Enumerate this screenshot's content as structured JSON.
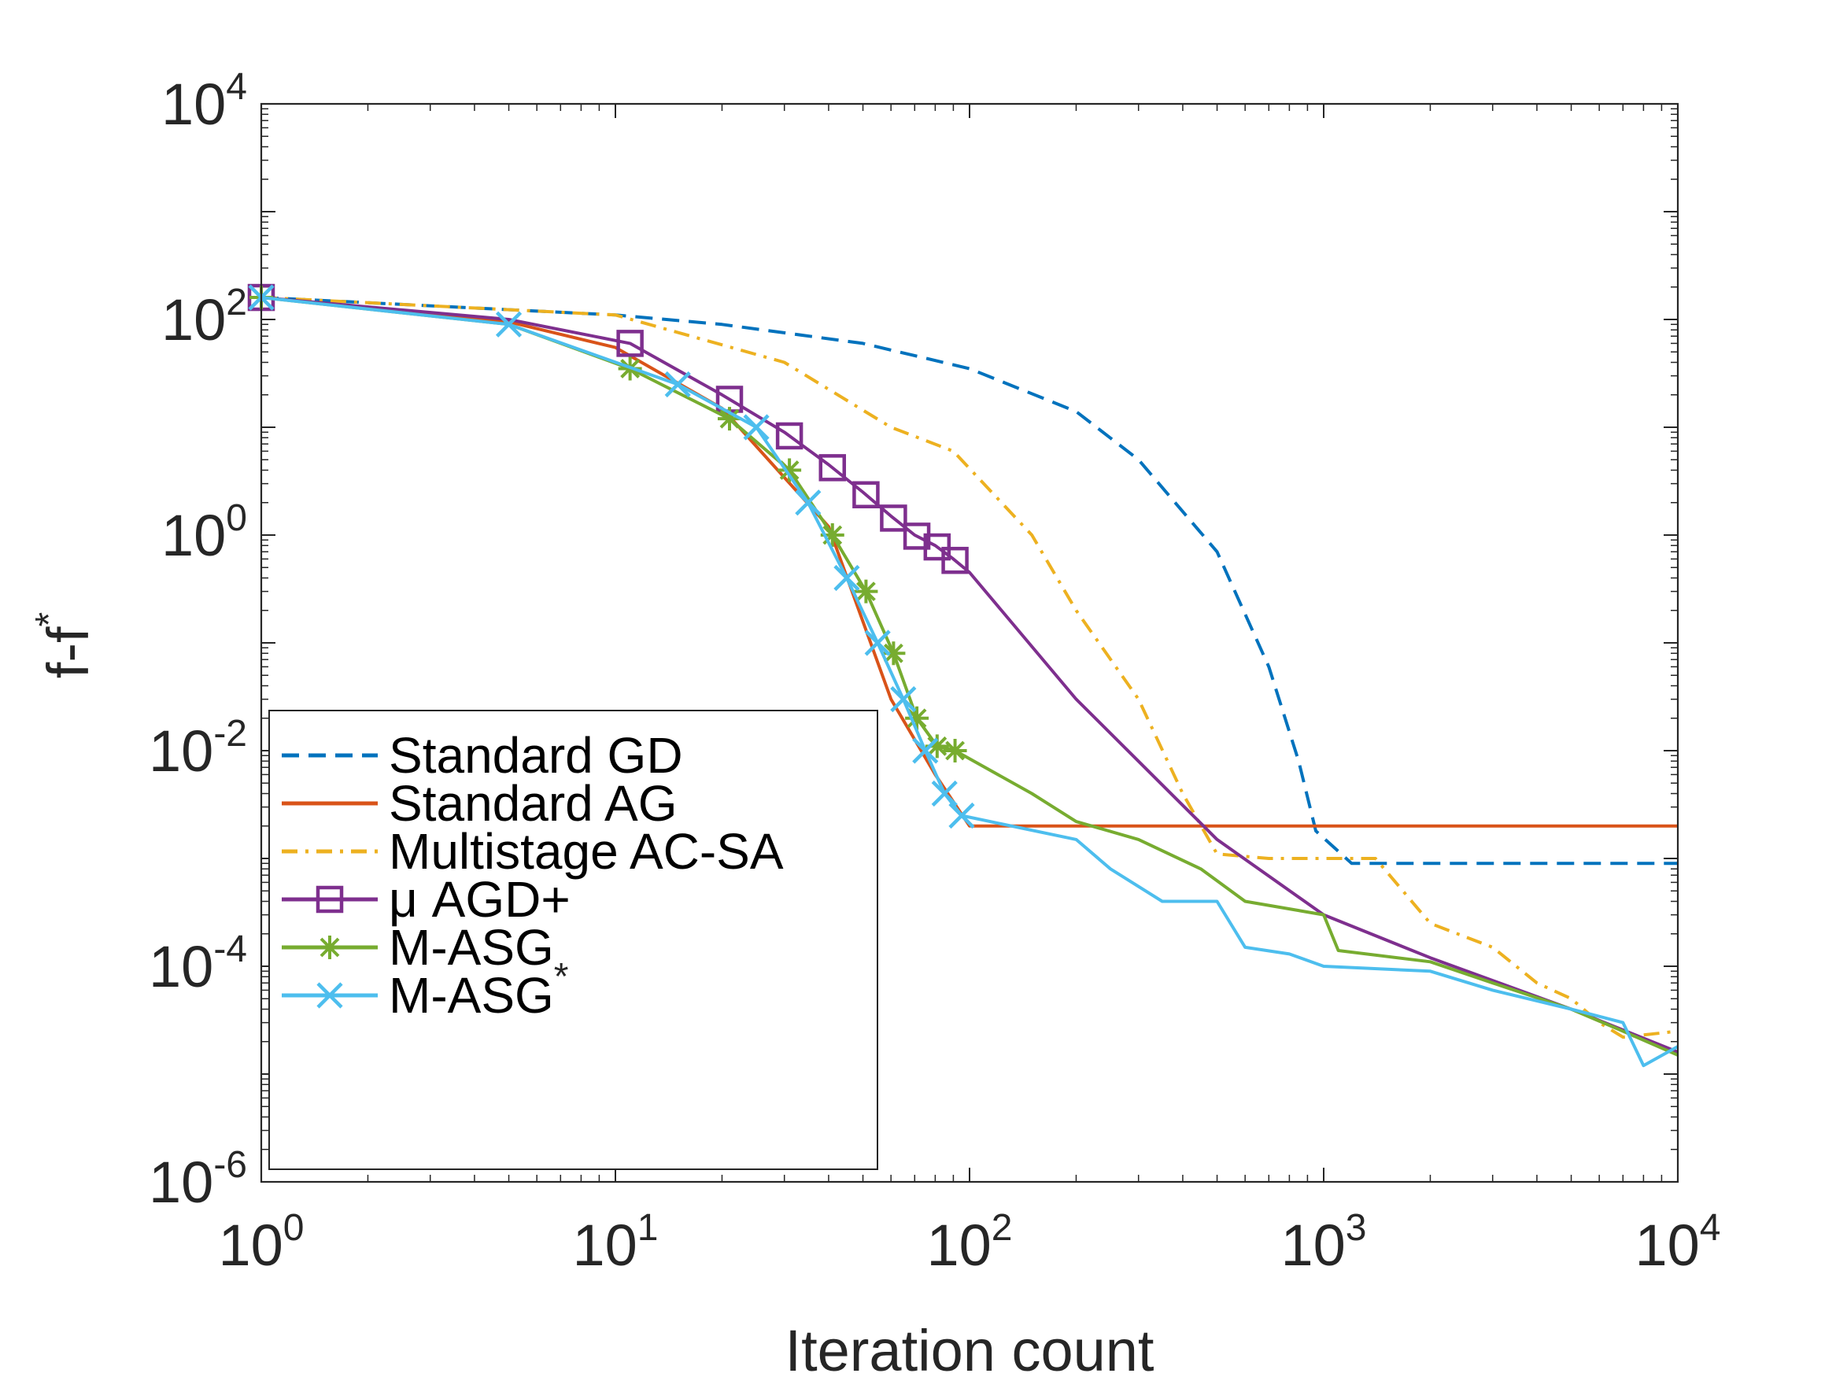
{
  "chart_data": {
    "type": "line",
    "x_scale": "log",
    "y_scale": "log",
    "xlim": [
      1,
      10000
    ],
    "ylim": [
      1e-06,
      10000
    ],
    "x_ticks": [
      {
        "value": 1,
        "base": "10",
        "exp": "0"
      },
      {
        "value": 10,
        "base": "10",
        "exp": "1"
      },
      {
        "value": 100,
        "base": "10",
        "exp": "2"
      },
      {
        "value": 1000,
        "base": "10",
        "exp": "3"
      },
      {
        "value": 10000,
        "base": "10",
        "exp": "4"
      }
    ],
    "y_ticks": [
      {
        "value": 10000,
        "base": "10",
        "exp": "4"
      },
      {
        "value": 100,
        "base": "10",
        "exp": "2"
      },
      {
        "value": 1,
        "base": "10",
        "exp": "0"
      },
      {
        "value": 0.01,
        "base": "10",
        "exp": "-2"
      },
      {
        "value": 0.0001,
        "base": "10",
        "exp": "-4"
      },
      {
        "value": 1e-06,
        "base": "10",
        "exp": "-6"
      }
    ],
    "xlabel": "Iteration count",
    "ylabel_base": "f-f",
    "ylabel_sup": "*",
    "legend_position": "lower-left",
    "series": [
      {
        "name": "Standard GD",
        "color": "#0072BD",
        "dash": "dashed",
        "marker": "none",
        "points": [
          [
            1,
            160
          ],
          [
            10,
            110
          ],
          [
            20,
            90
          ],
          [
            50,
            60
          ],
          [
            100,
            35
          ],
          [
            200,
            14
          ],
          [
            300,
            5
          ],
          [
            500,
            0.7
          ],
          [
            700,
            0.06
          ],
          [
            850,
            0.008
          ],
          [
            950,
            0.0018
          ],
          [
            1200,
            0.0009
          ],
          [
            10000,
            0.0009
          ]
        ]
      },
      {
        "name": "Standard AG",
        "color": "#D95319",
        "dash": "solid",
        "marker": "none",
        "points": [
          [
            1,
            160
          ],
          [
            5,
            95
          ],
          [
            10,
            55
          ],
          [
            20,
            15
          ],
          [
            40,
            1.2
          ],
          [
            60,
            0.03
          ],
          [
            80,
            0.006
          ],
          [
            100,
            0.002
          ],
          [
            10000,
            0.002
          ]
        ]
      },
      {
        "name": "Multistage AC-SA",
        "color": "#EDB120",
        "dash": "dashdot",
        "marker": "none",
        "points": [
          [
            1,
            160
          ],
          [
            10,
            110
          ],
          [
            30,
            40
          ],
          [
            60,
            10
          ],
          [
            90,
            6
          ],
          [
            150,
            1
          ],
          [
            200,
            0.2
          ],
          [
            300,
            0.03
          ],
          [
            400,
            0.004
          ],
          [
            500,
            0.0011
          ],
          [
            700,
            0.001
          ],
          [
            1400,
            0.001
          ],
          [
            2000,
            0.00025
          ],
          [
            3000,
            0.00015
          ],
          [
            4000,
            7e-05
          ],
          [
            5000,
            5e-05
          ],
          [
            6000,
            3e-05
          ],
          [
            7000,
            2.2e-05
          ],
          [
            10000,
            2.5e-05
          ]
        ]
      },
      {
        "name": "μ AGD+",
        "color": "#7E2F8E",
        "dash": "solid",
        "marker": "square",
        "marker_x": [
          1,
          11,
          21,
          31,
          41,
          51,
          61,
          71,
          81,
          91
        ],
        "points": [
          [
            1,
            160
          ],
          [
            5,
            100
          ],
          [
            11,
            60
          ],
          [
            20,
            20
          ],
          [
            30,
            9
          ],
          [
            40,
            4.5
          ],
          [
            50,
            2.5
          ],
          [
            60,
            1.5
          ],
          [
            70,
            1
          ],
          [
            80,
            0.8
          ],
          [
            90,
            0.6
          ],
          [
            100,
            0.45
          ],
          [
            200,
            0.03
          ],
          [
            500,
            0.0015
          ],
          [
            1000,
            0.0003
          ],
          [
            2000,
            0.00012
          ],
          [
            5000,
            4e-05
          ],
          [
            10000,
            1.6e-05
          ]
        ]
      },
      {
        "name": "M-ASG",
        "color": "#77AC30",
        "dash": "solid",
        "marker": "star",
        "marker_x": [
          1,
          11,
          21,
          31,
          41,
          51,
          61,
          71,
          81,
          91
        ],
        "points": [
          [
            1,
            160
          ],
          [
            5,
            90
          ],
          [
            11,
            35
          ],
          [
            21,
            12
          ],
          [
            31,
            4
          ],
          [
            41,
            1
          ],
          [
            51,
            0.3
          ],
          [
            61,
            0.08
          ],
          [
            71,
            0.02
          ],
          [
            81,
            0.011
          ],
          [
            91,
            0.01
          ],
          [
            150,
            0.004
          ],
          [
            200,
            0.0022
          ],
          [
            300,
            0.0015
          ],
          [
            450,
            0.0008
          ],
          [
            600,
            0.0004
          ],
          [
            1000,
            0.0003
          ],
          [
            1100,
            0.00014
          ],
          [
            2000,
            0.00011
          ],
          [
            3000,
            7e-05
          ],
          [
            5000,
            4e-05
          ],
          [
            7000,
            2.5e-05
          ],
          [
            10000,
            1.5e-05
          ]
        ]
      },
      {
        "name": "M-ASG*",
        "color": "#4DBEEE",
        "dash": "solid",
        "marker": "x",
        "marker_x": [
          1,
          5,
          15,
          25,
          35,
          45,
          55,
          65,
          75,
          85,
          95
        ],
        "points": [
          [
            1,
            160
          ],
          [
            5,
            90
          ],
          [
            15,
            25
          ],
          [
            25,
            10
          ],
          [
            35,
            2
          ],
          [
            45,
            0.4
          ],
          [
            55,
            0.1
          ],
          [
            65,
            0.03
          ],
          [
            75,
            0.01
          ],
          [
            85,
            0.004
          ],
          [
            95,
            0.0025
          ],
          [
            200,
            0.0015
          ],
          [
            250,
            0.0008
          ],
          [
            350,
            0.0004
          ],
          [
            500,
            0.0004
          ],
          [
            600,
            0.00015
          ],
          [
            800,
            0.00013
          ],
          [
            1000,
            0.0001
          ],
          [
            2000,
            9e-05
          ],
          [
            3000,
            6e-05
          ],
          [
            5000,
            4e-05
          ],
          [
            7000,
            3e-05
          ],
          [
            8000,
            1.2e-05
          ],
          [
            10000,
            1.8e-05
          ]
        ]
      }
    ],
    "legend": [
      {
        "label": "Standard GD",
        "sup": ""
      },
      {
        "label": "Standard AG",
        "sup": ""
      },
      {
        "label": "Multistage AC-SA",
        "sup": ""
      },
      {
        "label": "μ AGD+",
        "sup": ""
      },
      {
        "label": "M-ASG",
        "sup": ""
      },
      {
        "label": "M-ASG",
        "sup": "*"
      }
    ]
  }
}
